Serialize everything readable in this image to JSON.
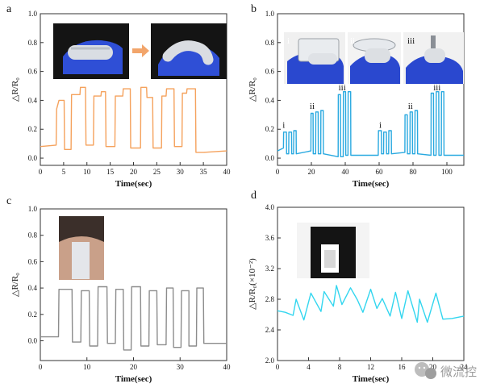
{
  "figure": {
    "watermark": {
      "text": "微流控",
      "icon": "wechat-icon"
    },
    "photo_icons": [
      "finger-bending-photo-straight",
      "finger-bending-photo-bent",
      "finger-photo-i",
      "finger-photo-ii",
      "finger-photo-iii",
      "neck-sensor-photo",
      "chest-sensor-photo"
    ],
    "arrow_color": "#f2a56b"
  },
  "chart_data": [
    {
      "panel": "a",
      "type": "line",
      "color": "#f5a25d",
      "xlabel": "Time(sec)",
      "ylabel": "△R/R₀",
      "xlim": [
        0,
        40
      ],
      "ylim": [
        -0.05,
        1.0
      ],
      "xticks": [
        0,
        5,
        10,
        15,
        20,
        25,
        30,
        35,
        40
      ],
      "yticks": [
        0.0,
        0.2,
        0.4,
        0.6,
        0.8,
        1.0
      ],
      "tick_labels_x": [
        "0",
        "5",
        "10",
        "15",
        "20",
        "25",
        "30",
        "35",
        "40"
      ],
      "tick_labels_y": [
        "0.0",
        "0.2",
        "0.4",
        "0.6",
        "0.8",
        "1.0"
      ],
      "x": [
        0,
        3.4,
        3.5,
        4.0,
        5.1,
        5.2,
        6.6,
        6.7,
        8.5,
        8.6,
        9.7,
        9.8,
        11.4,
        11.5,
        13.0,
        13.1,
        14.0,
        14.1,
        16.0,
        16.1,
        17.7,
        17.8,
        19.3,
        19.4,
        21.5,
        21.6,
        22.8,
        22.9,
        24.1,
        24.2,
        26.0,
        26.1,
        27.0,
        27.1,
        28.7,
        28.8,
        30.4,
        30.5,
        31.4,
        31.5,
        33.3,
        33.4,
        35.0,
        35.1,
        40.0
      ],
      "y": [
        0.08,
        0.09,
        0.34,
        0.4,
        0.4,
        0.06,
        0.06,
        0.44,
        0.44,
        0.49,
        0.49,
        0.09,
        0.09,
        0.43,
        0.43,
        0.46,
        0.46,
        0.08,
        0.08,
        0.43,
        0.43,
        0.48,
        0.48,
        0.07,
        0.07,
        0.49,
        0.49,
        0.42,
        0.42,
        0.07,
        0.07,
        0.43,
        0.43,
        0.48,
        0.48,
        0.08,
        0.08,
        0.45,
        0.45,
        0.48,
        0.48,
        0.04,
        0.04,
        0.04,
        0.05
      ]
    },
    {
      "panel": "b",
      "type": "line",
      "color": "#29a9e0",
      "xlabel": "Time(sec)",
      "ylabel": "△R/R₀",
      "xlim": [
        0,
        110
      ],
      "ylim": [
        -0.05,
        1.0
      ],
      "xticks": [
        0,
        20,
        40,
        60,
        80,
        100
      ],
      "yticks": [
        0.0,
        0.2,
        0.4,
        0.6,
        0.8,
        1.0
      ],
      "tick_labels_x": [
        "0",
        "20",
        "40",
        "60",
        "80",
        "100"
      ],
      "tick_labels_y": [
        "0.0",
        "0.2",
        "0.4",
        "0.6",
        "0.8",
        "1.0"
      ],
      "annotations": [
        {
          "text": "i",
          "x": 3,
          "y": 0.21
        },
        {
          "text": "ii",
          "x": 19,
          "y": 0.34
        },
        {
          "text": "iii",
          "x": 36,
          "y": 0.47
        },
        {
          "text": "i",
          "x": 60,
          "y": 0.21
        },
        {
          "text": "ii",
          "x": 77,
          "y": 0.34
        },
        {
          "text": "iii",
          "x": 92,
          "y": 0.47
        }
      ],
      "x": [
        0,
        3.5,
        3.6,
        5.3,
        5.4,
        6.6,
        6.7,
        8.3,
        8.4,
        9.5,
        9.6,
        11.0,
        11.1,
        19.7,
        19.8,
        21.0,
        21.1,
        22.5,
        22.6,
        24.0,
        24.1,
        25.5,
        25.6,
        27.0,
        27.1,
        35.8,
        35.9,
        37.2,
        37.3,
        38.8,
        38.9,
        40.2,
        40.3,
        41.6,
        41.7,
        43.2,
        43.3,
        59.5,
        59.6,
        61.3,
        61.4,
        62.6,
        62.7,
        64.3,
        64.4,
        65.6,
        65.7,
        67.2,
        67.3,
        75.2,
        75.3,
        76.6,
        76.7,
        78.2,
        78.3,
        79.6,
        79.7,
        81.1,
        81.2,
        82.6,
        82.7,
        90.6,
        90.7,
        92.1,
        92.2,
        93.6,
        93.7,
        95.2,
        95.3,
        96.7,
        96.8,
        98.2,
        98.3,
        110.0
      ],
      "y": [
        0.05,
        0.07,
        0.18,
        0.18,
        0.03,
        0.03,
        0.18,
        0.18,
        0.03,
        0.03,
        0.19,
        0.19,
        0.03,
        0.05,
        0.31,
        0.31,
        0.03,
        0.03,
        0.32,
        0.32,
        0.03,
        0.03,
        0.33,
        0.33,
        0.03,
        0.01,
        0.44,
        0.44,
        0.01,
        0.01,
        0.46,
        0.46,
        0.02,
        0.02,
        0.46,
        0.46,
        0.02,
        0.02,
        0.19,
        0.19,
        0.03,
        0.03,
        0.18,
        0.18,
        0.03,
        0.03,
        0.19,
        0.19,
        0.03,
        0.04,
        0.3,
        0.3,
        0.03,
        0.03,
        0.32,
        0.32,
        0.03,
        0.03,
        0.33,
        0.33,
        0.03,
        0.02,
        0.45,
        0.45,
        0.02,
        0.02,
        0.46,
        0.46,
        0.02,
        0.02,
        0.46,
        0.46,
        0.02,
        0.02
      ]
    },
    {
      "panel": "c",
      "type": "line",
      "color": "#8c8c8c",
      "xlabel": "Time(sec)",
      "ylabel": "△R/R₀",
      "xlim": [
        0,
        40
      ],
      "ylim": [
        -0.15,
        1.0
      ],
      "xticks": [
        0,
        10,
        20,
        30,
        40
      ],
      "yticks": [
        0.0,
        0.2,
        0.4,
        0.6,
        0.8,
        1.0
      ],
      "tick_labels_x": [
        "0",
        "10",
        "20",
        "30",
        "40"
      ],
      "tick_labels_y": [
        "0.0",
        "0.2",
        "0.4",
        "0.6",
        "0.8",
        "1.0"
      ],
      "x": [
        0,
        3.9,
        4.0,
        6.8,
        6.9,
        8.7,
        8.8,
        10.5,
        10.6,
        12.3,
        12.4,
        14.3,
        14.4,
        16.1,
        16.2,
        17.8,
        17.9,
        19.5,
        19.6,
        21.5,
        21.6,
        23.3,
        23.4,
        25.0,
        25.1,
        27.0,
        27.1,
        28.5,
        28.6,
        30.2,
        30.3,
        31.9,
        31.9,
        33.5,
        33.6,
        35.0,
        35.1,
        40.0
      ],
      "y": [
        0.03,
        0.03,
        0.39,
        0.39,
        -0.01,
        -0.01,
        0.38,
        0.38,
        -0.04,
        -0.04,
        0.41,
        0.41,
        -0.02,
        -0.02,
        0.39,
        0.39,
        -0.07,
        -0.07,
        0.41,
        0.41,
        -0.04,
        -0.04,
        0.38,
        0.38,
        -0.03,
        -0.03,
        0.4,
        0.4,
        -0.05,
        -0.05,
        0.38,
        0.38,
        -0.04,
        -0.04,
        0.4,
        0.4,
        -0.02,
        -0.02
      ]
    },
    {
      "panel": "d",
      "type": "line",
      "color": "#33d6ef",
      "xlabel": "Time(sec)",
      "ylabel": "△R/R₀(×10⁻²)",
      "xlim": [
        0,
        24
      ],
      "ylim": [
        2.0,
        4.0
      ],
      "xticks": [
        0,
        4,
        8,
        12,
        16,
        20,
        24
      ],
      "yticks": [
        2.0,
        2.4,
        2.8,
        3.2,
        3.6,
        4.0
      ],
      "tick_labels_x": [
        "0",
        "4",
        "8",
        "12",
        "16",
        "20",
        "24"
      ],
      "tick_labels_y": [
        "2.0",
        "2.4",
        "2.8",
        "3.2",
        "3.6",
        "4.0"
      ],
      "x": [
        0,
        1.0,
        2.0,
        2.4,
        3.4,
        4.3,
        5.6,
        6.0,
        7.2,
        7.6,
        8.3,
        9.4,
        10.3,
        11.0,
        12.0,
        12.8,
        13.5,
        14.5,
        15.2,
        16.0,
        16.8,
        18.0,
        18.3,
        19.3,
        20.4,
        21.3,
        22.5,
        24.0
      ],
      "y": [
        2.65,
        2.63,
        2.59,
        2.8,
        2.53,
        2.88,
        2.64,
        2.9,
        2.71,
        2.98,
        2.73,
        2.95,
        2.79,
        2.63,
        2.93,
        2.68,
        2.81,
        2.58,
        2.89,
        2.55,
        2.91,
        2.5,
        2.8,
        2.5,
        2.88,
        2.54,
        2.55,
        2.58
      ]
    }
  ]
}
